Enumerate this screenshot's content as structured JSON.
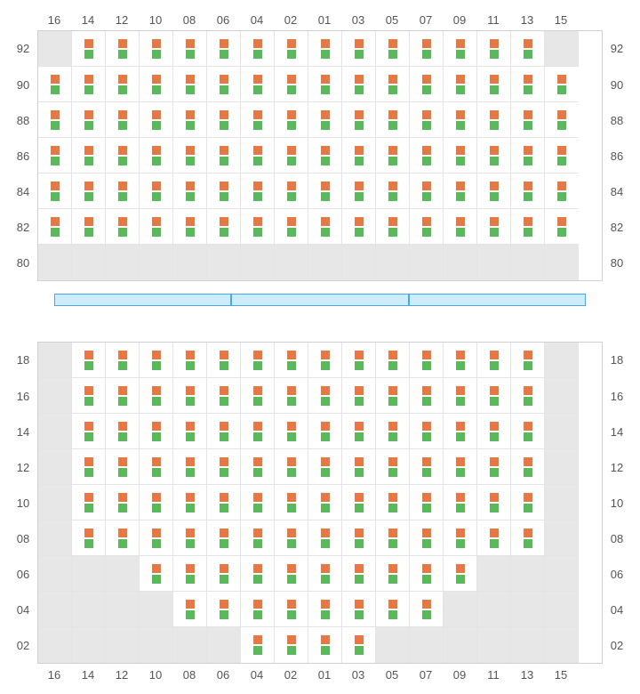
{
  "columns": [
    "16",
    "14",
    "12",
    "10",
    "08",
    "06",
    "04",
    "02",
    "01",
    "03",
    "05",
    "07",
    "09",
    "11",
    "13",
    "15"
  ],
  "colors": {
    "seat_top": "#e57843",
    "seat_bottom": "#5cb85c",
    "empty_bg": "#e7e7e7",
    "seat_bg": "#ffffff",
    "stage_fill": "#cdecfb",
    "stage_border": "#4aa8e0",
    "grid_line": "#e4e4e4",
    "label_color": "#555555"
  },
  "stage_segments": 3,
  "upper": {
    "rows": [
      "92",
      "90",
      "88",
      "86",
      "84",
      "82",
      "80"
    ],
    "cells": [
      [
        0,
        1,
        1,
        1,
        1,
        1,
        1,
        1,
        1,
        1,
        1,
        1,
        1,
        1,
        1,
        0
      ],
      [
        1,
        1,
        1,
        1,
        1,
        1,
        1,
        1,
        1,
        1,
        1,
        1,
        1,
        1,
        1,
        1
      ],
      [
        1,
        1,
        1,
        1,
        1,
        1,
        1,
        1,
        1,
        1,
        1,
        1,
        1,
        1,
        1,
        1
      ],
      [
        1,
        1,
        1,
        1,
        1,
        1,
        1,
        1,
        1,
        1,
        1,
        1,
        1,
        1,
        1,
        1
      ],
      [
        1,
        1,
        1,
        1,
        1,
        1,
        1,
        1,
        1,
        1,
        1,
        1,
        1,
        1,
        1,
        1
      ],
      [
        1,
        1,
        1,
        1,
        1,
        1,
        1,
        1,
        1,
        1,
        1,
        1,
        1,
        1,
        1,
        1
      ],
      [
        0,
        0,
        0,
        0,
        0,
        0,
        0,
        0,
        0,
        0,
        0,
        0,
        0,
        0,
        0,
        0
      ]
    ]
  },
  "lower": {
    "rows": [
      "18",
      "16",
      "14",
      "12",
      "10",
      "08",
      "06",
      "04",
      "02"
    ],
    "cells": [
      [
        0,
        1,
        1,
        1,
        1,
        1,
        1,
        1,
        1,
        1,
        1,
        1,
        1,
        1,
        1,
        0
      ],
      [
        0,
        1,
        1,
        1,
        1,
        1,
        1,
        1,
        1,
        1,
        1,
        1,
        1,
        1,
        1,
        0
      ],
      [
        0,
        1,
        1,
        1,
        1,
        1,
        1,
        1,
        1,
        1,
        1,
        1,
        1,
        1,
        1,
        0
      ],
      [
        0,
        1,
        1,
        1,
        1,
        1,
        1,
        1,
        1,
        1,
        1,
        1,
        1,
        1,
        1,
        0
      ],
      [
        0,
        1,
        1,
        1,
        1,
        1,
        1,
        1,
        1,
        1,
        1,
        1,
        1,
        1,
        1,
        0
      ],
      [
        0,
        1,
        1,
        1,
        1,
        1,
        1,
        1,
        1,
        1,
        1,
        1,
        1,
        1,
        1,
        0
      ],
      [
        0,
        0,
        0,
        1,
        1,
        1,
        1,
        1,
        1,
        1,
        1,
        1,
        1,
        0,
        0,
        0
      ],
      [
        0,
        0,
        0,
        0,
        1,
        1,
        1,
        1,
        1,
        1,
        1,
        1,
        0,
        0,
        0,
        0
      ],
      [
        0,
        0,
        0,
        0,
        0,
        0,
        1,
        1,
        1,
        1,
        0,
        0,
        0,
        0,
        0,
        0
      ]
    ]
  }
}
